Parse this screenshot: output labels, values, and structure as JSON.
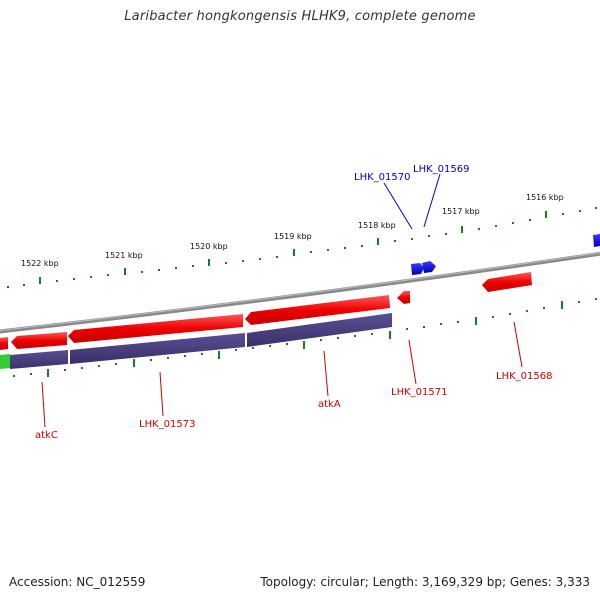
{
  "title": "Laribacter hongkongensis HLHK9, complete genome",
  "footer": {
    "accession": "Accession: NC_012559",
    "summary": "Topology: circular; Length: 3,169,329 bp; Genes: 3,333"
  },
  "colors": {
    "forward_gene": "#0000cc",
    "reverse_gene": "#ee0000",
    "reverse_label": "#cc0000",
    "cds_band": "#443a7a",
    "green_feature": "#33cc33",
    "backbone": "#808080",
    "tick": "#1e7a1e"
  },
  "kbp_ticks": [
    {
      "label": "1522 kbp"
    },
    {
      "label": "1521 kbp"
    },
    {
      "label": "1520 kbp"
    },
    {
      "label": "1519 kbp"
    },
    {
      "label": "1518 kbp"
    },
    {
      "label": "1517 kbp"
    },
    {
      "label": "1516 kbp"
    }
  ],
  "genes_forward": [
    {
      "label": "LHK_01570"
    },
    {
      "label": "LHK_01569"
    }
  ],
  "genes_reverse": [
    {
      "label": "atkC"
    },
    {
      "label": "LHK_01573"
    },
    {
      "label": "atkA"
    },
    {
      "label": "LHK_01571"
    },
    {
      "label": "LHK_01568"
    }
  ]
}
